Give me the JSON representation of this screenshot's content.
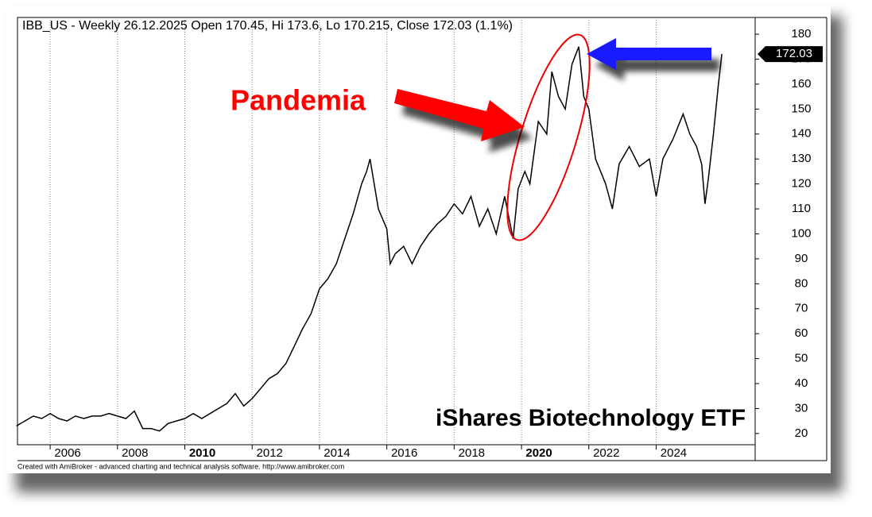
{
  "chart_data": {
    "type": "line",
    "title": "IBB_US - Weekly 26.12.2025 Open 170.45, Hi 173.6, Lo 170.215, Close 172.03 (1.1%)",
    "annotations": [
      "Pandemia",
      "iShares Biotechnology ETF"
    ],
    "footer": "Created with AmiBroker - advanced charting and technical analysis software. http://www.amibroker.com",
    "x": [
      2005.0,
      2005.25,
      2005.5,
      2005.75,
      2006.0,
      2006.25,
      2006.5,
      2006.75,
      2007.0,
      2007.25,
      2007.5,
      2007.75,
      2008.0,
      2008.25,
      2008.5,
      2008.75,
      2009.0,
      2009.25,
      2009.5,
      2009.75,
      2010.0,
      2010.25,
      2010.5,
      2010.75,
      2011.0,
      2011.25,
      2011.5,
      2011.75,
      2012.0,
      2012.25,
      2012.5,
      2012.75,
      2013.0,
      2013.25,
      2013.5,
      2013.75,
      2014.0,
      2014.25,
      2014.5,
      2014.75,
      2015.0,
      2015.25,
      2015.4,
      2015.5,
      2015.75,
      2016.0,
      2016.1,
      2016.25,
      2016.5,
      2016.75,
      2017.0,
      2017.25,
      2017.5,
      2017.75,
      2018.0,
      2018.25,
      2018.5,
      2018.75,
      2019.0,
      2019.25,
      2019.5,
      2019.75,
      2019.9,
      2020.1,
      2020.25,
      2020.5,
      2020.75,
      2020.9,
      2021.1,
      2021.3,
      2021.5,
      2021.7,
      2021.85,
      2022.0,
      2022.2,
      2022.5,
      2022.7,
      2022.9,
      2023.2,
      2023.5,
      2023.8,
      2024.0,
      2024.2,
      2024.5,
      2024.8,
      2025.0,
      2025.2,
      2025.35,
      2025.45,
      2025.55,
      2025.7,
      2025.85,
      2025.95
    ],
    "series": [
      {
        "name": "IBB_US",
        "color": "#000000",
        "values": [
          23,
          25,
          27,
          26,
          28,
          26,
          25,
          27,
          26,
          27,
          27,
          28,
          27,
          26,
          29,
          22,
          22,
          21,
          24,
          25,
          26,
          28,
          26,
          28,
          30,
          32,
          36,
          31,
          34,
          38,
          42,
          44,
          48,
          55,
          62,
          68,
          78,
          82,
          88,
          98,
          108,
          120,
          125,
          130,
          110,
          102,
          88,
          92,
          95,
          88,
          95,
          100,
          104,
          107,
          112,
          108,
          115,
          103,
          110,
          100,
          115,
          98,
          118,
          125,
          120,
          145,
          140,
          165,
          155,
          150,
          168,
          175,
          155,
          150,
          130,
          120,
          110,
          128,
          135,
          127,
          130,
          115,
          130,
          138,
          148,
          140,
          135,
          128,
          112,
          122,
          140,
          160,
          172.03
        ]
      }
    ],
    "xlim": [
      2005.03,
      2026.94
    ],
    "xticks": [
      2006,
      2008,
      2010,
      2012,
      2014,
      2016,
      2018,
      2020,
      2022,
      2024
    ],
    "xticks_bold": [
      2010,
      2020
    ],
    "ylim": [
      15.5,
      186.7
    ],
    "yticks": [
      20,
      30,
      40,
      50,
      60,
      70,
      80,
      90,
      100,
      110,
      120,
      130,
      140,
      150,
      160,
      170,
      180
    ],
    "grid": true
  }
}
